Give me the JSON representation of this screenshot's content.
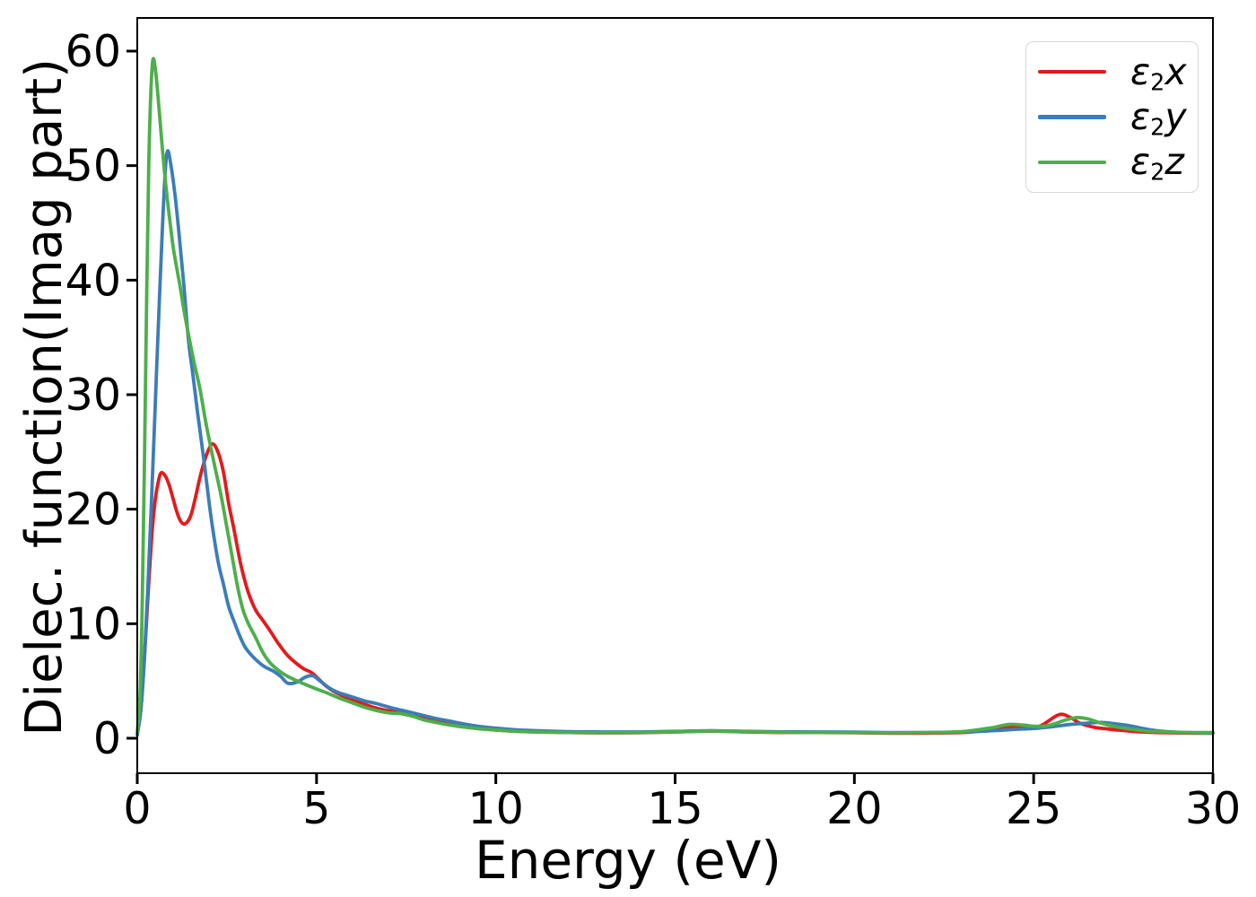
{
  "figure": {
    "background": "#ffffff",
    "frame_color": "#000000",
    "xlabel": "Energy (eV)",
    "ylabel": "Dielec. function(Imag part)"
  },
  "legend": {
    "position": "upper right",
    "items": [
      {
        "symbol": "ε",
        "subscript": "2",
        "axis": "x",
        "label": "ε₂x",
        "color": "#e41a1c"
      },
      {
        "symbol": "ε",
        "subscript": "2",
        "axis": "y",
        "label": "ε₂y",
        "color": "#3b7db8"
      },
      {
        "symbol": "ε",
        "subscript": "2",
        "axis": "z",
        "label": "ε₂z",
        "color": "#4daf4a"
      }
    ]
  },
  "chart_data": {
    "type": "line",
    "title": "",
    "xlabel": "Energy (eV)",
    "ylabel": "Dielec. function(Imag part)",
    "xlim": [
      0,
      30
    ],
    "ylim": [
      -3,
      63
    ],
    "xticks": [
      0,
      5,
      10,
      15,
      20,
      25,
      30
    ],
    "yticks": [
      0,
      10,
      20,
      30,
      40,
      50,
      60
    ],
    "grid": false,
    "legend_position": "upper right",
    "series": [
      {
        "name": "ε₂x",
        "color": "#e41a1c",
        "points": [
          [
            0,
            0.4
          ],
          [
            0.1,
            2.5
          ],
          [
            0.2,
            7
          ],
          [
            0.3,
            12.5
          ],
          [
            0.4,
            17.5
          ],
          [
            0.5,
            20.8
          ],
          [
            0.6,
            22.6
          ],
          [
            0.68,
            23.2
          ],
          [
            0.8,
            22.8
          ],
          [
            0.9,
            22.0
          ],
          [
            1.0,
            20.9
          ],
          [
            1.1,
            19.8
          ],
          [
            1.2,
            19.0
          ],
          [
            1.3,
            18.7
          ],
          [
            1.4,
            18.9
          ],
          [
            1.5,
            19.5
          ],
          [
            1.6,
            20.7
          ],
          [
            1.7,
            22.1
          ],
          [
            1.8,
            23.4
          ],
          [
            1.95,
            24.9
          ],
          [
            2.1,
            25.7
          ],
          [
            2.25,
            25.0
          ],
          [
            2.4,
            23.3
          ],
          [
            2.55,
            20.5
          ],
          [
            2.7,
            18.2
          ],
          [
            2.9,
            15.0
          ],
          [
            3.1,
            12.7
          ],
          [
            3.3,
            11.2
          ],
          [
            3.5,
            10.3
          ],
          [
            3.7,
            9.4
          ],
          [
            3.95,
            8.2
          ],
          [
            4.2,
            7.2
          ],
          [
            4.45,
            6.5
          ],
          [
            4.65,
            6.05
          ],
          [
            4.85,
            5.75
          ],
          [
            5.05,
            5.2
          ],
          [
            5.25,
            4.6
          ],
          [
            5.45,
            4.15
          ],
          [
            5.7,
            3.75
          ],
          [
            6.0,
            3.35
          ],
          [
            6.35,
            2.95
          ],
          [
            6.7,
            2.6
          ],
          [
            7.1,
            2.35
          ],
          [
            7.5,
            2.1
          ],
          [
            7.9,
            1.8
          ],
          [
            8.3,
            1.5
          ],
          [
            8.7,
            1.25
          ],
          [
            9.1,
            1.0
          ],
          [
            9.5,
            0.85
          ],
          [
            10,
            0.72
          ],
          [
            10.5,
            0.62
          ],
          [
            11,
            0.56
          ],
          [
            12,
            0.5
          ],
          [
            13,
            0.47
          ],
          [
            14,
            0.48
          ],
          [
            15,
            0.55
          ],
          [
            16,
            0.62
          ],
          [
            17,
            0.55
          ],
          [
            18,
            0.5
          ],
          [
            19,
            0.5
          ],
          [
            20,
            0.48
          ],
          [
            21,
            0.45
          ],
          [
            22,
            0.45
          ],
          [
            23,
            0.5
          ],
          [
            23.6,
            0.65
          ],
          [
            24,
            0.8
          ],
          [
            24.4,
            1.0
          ],
          [
            24.8,
            0.85
          ],
          [
            25.2,
            1.1
          ],
          [
            25.7,
            2.05
          ],
          [
            26.0,
            1.85
          ],
          [
            26.3,
            1.3
          ],
          [
            26.7,
            0.95
          ],
          [
            27.1,
            0.8
          ],
          [
            27.5,
            0.68
          ],
          [
            28,
            0.55
          ],
          [
            28.7,
            0.48
          ],
          [
            29.5,
            0.45
          ],
          [
            30,
            0.45
          ]
        ]
      },
      {
        "name": "ε₂y",
        "color": "#3b7db8",
        "points": [
          [
            0,
            0.3
          ],
          [
            0.1,
            2.5
          ],
          [
            0.2,
            7
          ],
          [
            0.3,
            13.5
          ],
          [
            0.4,
            21
          ],
          [
            0.5,
            29
          ],
          [
            0.6,
            37
          ],
          [
            0.7,
            44.5
          ],
          [
            0.78,
            49.5
          ],
          [
            0.85,
            51.3
          ],
          [
            0.95,
            49.8
          ],
          [
            1.05,
            47.5
          ],
          [
            1.15,
            44.5
          ],
          [
            1.3,
            39.5
          ],
          [
            1.43,
            34.7
          ],
          [
            1.55,
            31.8
          ],
          [
            1.68,
            28.5
          ],
          [
            1.85,
            24.5
          ],
          [
            2.05,
            19.5
          ],
          [
            2.25,
            15.5
          ],
          [
            2.4,
            13.5
          ],
          [
            2.55,
            11.5
          ],
          [
            2.7,
            10.2
          ],
          [
            2.85,
            9.0
          ],
          [
            3.0,
            8.0
          ],
          [
            3.2,
            7.2
          ],
          [
            3.5,
            6.35
          ],
          [
            3.8,
            5.85
          ],
          [
            4.0,
            5.4
          ],
          [
            4.2,
            4.8
          ],
          [
            4.45,
            4.9
          ],
          [
            4.7,
            5.35
          ],
          [
            4.9,
            5.45
          ],
          [
            5.1,
            5.0
          ],
          [
            5.35,
            4.4
          ],
          [
            5.6,
            4.0
          ],
          [
            5.9,
            3.7
          ],
          [
            6.3,
            3.3
          ],
          [
            6.7,
            3.0
          ],
          [
            7.1,
            2.65
          ],
          [
            7.5,
            2.35
          ],
          [
            7.9,
            2.05
          ],
          [
            8.3,
            1.75
          ],
          [
            8.7,
            1.5
          ],
          [
            9.1,
            1.25
          ],
          [
            9.5,
            1.05
          ],
          [
            10,
            0.88
          ],
          [
            10.5,
            0.75
          ],
          [
            11,
            0.67
          ],
          [
            12,
            0.58
          ],
          [
            13,
            0.55
          ],
          [
            14,
            0.55
          ],
          [
            15,
            0.6
          ],
          [
            16,
            0.65
          ],
          [
            17,
            0.6
          ],
          [
            18,
            0.56
          ],
          [
            19,
            0.55
          ],
          [
            20,
            0.53
          ],
          [
            21,
            0.5
          ],
          [
            22,
            0.5
          ],
          [
            23,
            0.55
          ],
          [
            24,
            0.68
          ],
          [
            24.5,
            0.78
          ],
          [
            25,
            0.85
          ],
          [
            25.5,
            1.0
          ],
          [
            26,
            1.2
          ],
          [
            26.5,
            1.32
          ],
          [
            26.9,
            1.38
          ],
          [
            27.3,
            1.25
          ],
          [
            27.7,
            1.08
          ],
          [
            28.1,
            0.82
          ],
          [
            28.6,
            0.6
          ],
          [
            29.2,
            0.5
          ],
          [
            30,
            0.45
          ]
        ]
      },
      {
        "name": "ε₂z",
        "color": "#4daf4a",
        "points": [
          [
            0,
            0.5
          ],
          [
            0.08,
            4
          ],
          [
            0.14,
            12
          ],
          [
            0.2,
            24
          ],
          [
            0.26,
            38
          ],
          [
            0.32,
            50
          ],
          [
            0.38,
            56.5
          ],
          [
            0.44,
            59.3
          ],
          [
            0.52,
            58.0
          ],
          [
            0.62,
            54.5
          ],
          [
            0.72,
            50.8
          ],
          [
            0.82,
            47.6
          ],
          [
            0.92,
            44.9
          ],
          [
            1.02,
            42.5
          ],
          [
            1.18,
            39.7
          ],
          [
            1.3,
            37.4
          ],
          [
            1.45,
            34.9
          ],
          [
            1.6,
            32.6
          ],
          [
            1.75,
            30.5
          ],
          [
            1.9,
            27.8
          ],
          [
            2.05,
            25.4
          ],
          [
            2.2,
            23.2
          ],
          [
            2.35,
            21.0
          ],
          [
            2.5,
            18.4
          ],
          [
            2.65,
            15.8
          ],
          [
            2.8,
            13.2
          ],
          [
            2.95,
            11.2
          ],
          [
            3.1,
            10.0
          ],
          [
            3.3,
            8.8
          ],
          [
            3.5,
            7.5
          ],
          [
            3.7,
            6.6
          ],
          [
            3.95,
            5.9
          ],
          [
            4.2,
            5.4
          ],
          [
            4.5,
            4.95
          ],
          [
            4.8,
            4.55
          ],
          [
            5.0,
            4.3
          ],
          [
            5.3,
            3.95
          ],
          [
            5.6,
            3.55
          ],
          [
            5.9,
            3.2
          ],
          [
            6.3,
            2.75
          ],
          [
            6.7,
            2.4
          ],
          [
            7.05,
            2.2
          ],
          [
            7.35,
            2.15
          ],
          [
            7.7,
            1.9
          ],
          [
            8.0,
            1.6
          ],
          [
            8.5,
            1.28
          ],
          [
            9.0,
            1.02
          ],
          [
            9.5,
            0.84
          ],
          [
            10,
            0.72
          ],
          [
            10.5,
            0.62
          ],
          [
            11,
            0.56
          ],
          [
            12,
            0.5
          ],
          [
            13,
            0.48
          ],
          [
            14,
            0.5
          ],
          [
            15,
            0.57
          ],
          [
            16,
            0.64
          ],
          [
            17,
            0.58
          ],
          [
            18,
            0.52
          ],
          [
            19,
            0.5
          ],
          [
            20,
            0.5
          ],
          [
            21,
            0.48
          ],
          [
            22,
            0.5
          ],
          [
            23,
            0.58
          ],
          [
            23.8,
            0.9
          ],
          [
            24.3,
            1.2
          ],
          [
            24.7,
            1.15
          ],
          [
            25.0,
            1.05
          ],
          [
            25.4,
            1.1
          ],
          [
            25.9,
            1.6
          ],
          [
            26.2,
            1.8
          ],
          [
            26.5,
            1.7
          ],
          [
            26.9,
            1.3
          ],
          [
            27.3,
            1.0
          ],
          [
            27.7,
            0.8
          ],
          [
            28.2,
            0.62
          ],
          [
            29,
            0.52
          ],
          [
            29.5,
            0.5
          ],
          [
            30,
            0.5
          ]
        ]
      }
    ]
  }
}
